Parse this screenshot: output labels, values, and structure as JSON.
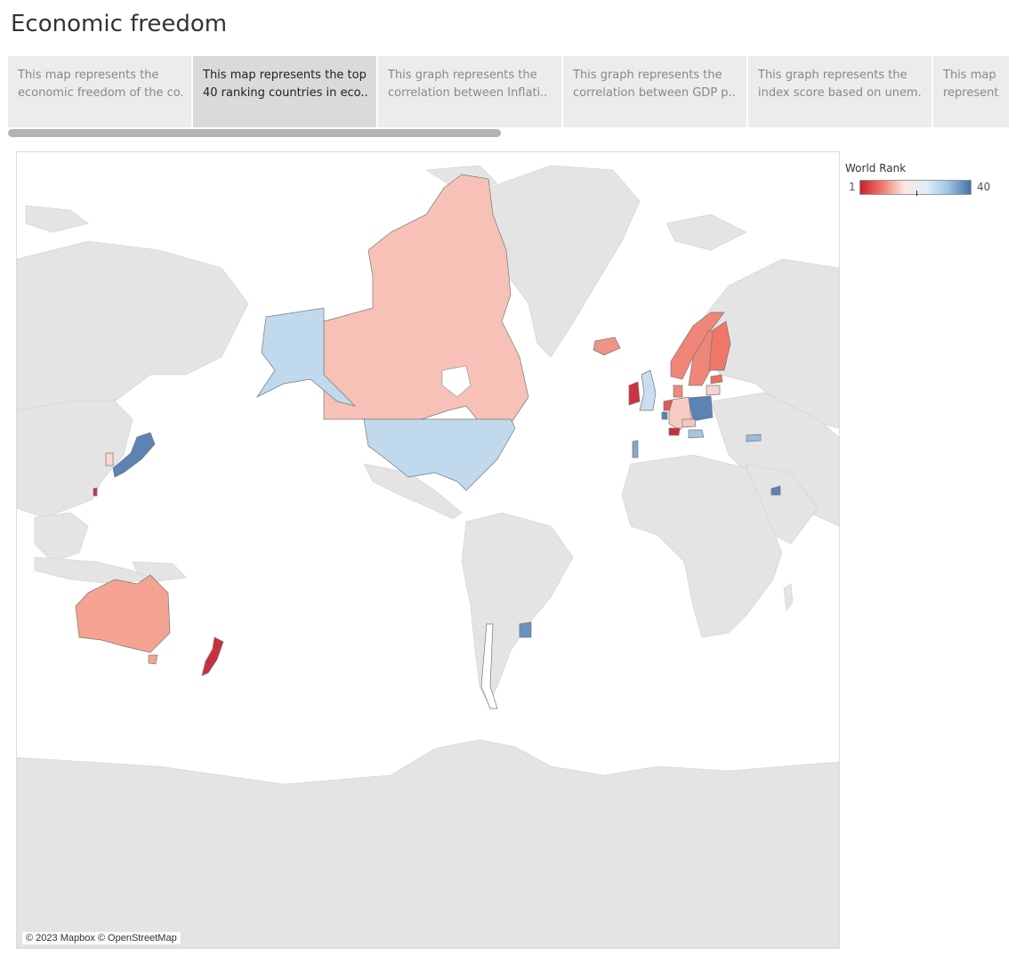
{
  "page": {
    "title": "Economic freedom"
  },
  "story": {
    "points": [
      {
        "line1": "This map represents the",
        "line2": "economic freedom of the co..",
        "active": false
      },
      {
        "line1": "This map represents the top",
        "line2": "40 ranking countries in eco..",
        "active": true
      },
      {
        "line1": "This graph represents the",
        "line2": "correlation between Inflati..",
        "active": false
      },
      {
        "line1": "This graph represents the",
        "line2": "correlation between GDP p..",
        "active": false
      },
      {
        "line1": "This graph represents the",
        "line2": "index score based on unem..",
        "active": false
      },
      {
        "line1": "This map",
        "line2": "represent..",
        "active": false
      }
    ]
  },
  "legend": {
    "title": "World Rank",
    "min": "1",
    "max": "40",
    "colors": [
      "#c9202f",
      "#f07a6d",
      "#fbe7e3",
      "#dfeefa",
      "#9cc4e2",
      "#4471a2"
    ]
  },
  "map": {
    "attribution": "© 2023 Mapbox © OpenStreetMap",
    "base_land_color": "#e4e4e4",
    "highlighted": [
      {
        "country": "Canada",
        "color": "#f7c1b8"
      },
      {
        "country": "United States",
        "color": "#c0d9ec"
      },
      {
        "country": "Alaska (United States)",
        "color": "#c0d9ec"
      },
      {
        "country": "Australia",
        "color": "#f4a393"
      },
      {
        "country": "New Zealand",
        "color": "#c9303f"
      },
      {
        "country": "Japan",
        "color": "#5b83b3"
      },
      {
        "country": "Taiwan",
        "color": "#c9303f"
      },
      {
        "country": "South Korea",
        "color": "#f8d9d4"
      },
      {
        "country": "Uruguay",
        "color": "#6a91bd"
      },
      {
        "country": "Iceland",
        "color": "#f09485"
      },
      {
        "country": "Ireland",
        "color": "#cc3343"
      },
      {
        "country": "United Kingdom",
        "color": "#c9def0"
      },
      {
        "country": "Norway",
        "color": "#ef8678"
      },
      {
        "country": "Sweden",
        "color": "#ef8678"
      },
      {
        "country": "Finland",
        "color": "#ee7767"
      },
      {
        "country": "Denmark",
        "color": "#ef8b7c"
      },
      {
        "country": "Netherlands",
        "color": "#e05a56"
      },
      {
        "country": "Germany",
        "color": "#f7cbc4"
      },
      {
        "country": "Switzerland",
        "color": "#c9303f"
      },
      {
        "country": "Poland",
        "color": "#5b83b3"
      },
      {
        "country": "Estonia",
        "color": "#ea6f62"
      },
      {
        "country": "Lithuania",
        "color": "#f6d4cf"
      },
      {
        "country": "Portugal",
        "color": "#84a7cc"
      },
      {
        "country": "Czechia",
        "color": "#f5c7bf"
      },
      {
        "country": "Austria",
        "color": "#a8c6e1"
      },
      {
        "country": "Georgia",
        "color": "#9cbedc"
      },
      {
        "country": "United Arab Emirates",
        "color": "#5b83b3"
      },
      {
        "country": "Luxembourg",
        "color": "#5b83b3"
      }
    ]
  }
}
